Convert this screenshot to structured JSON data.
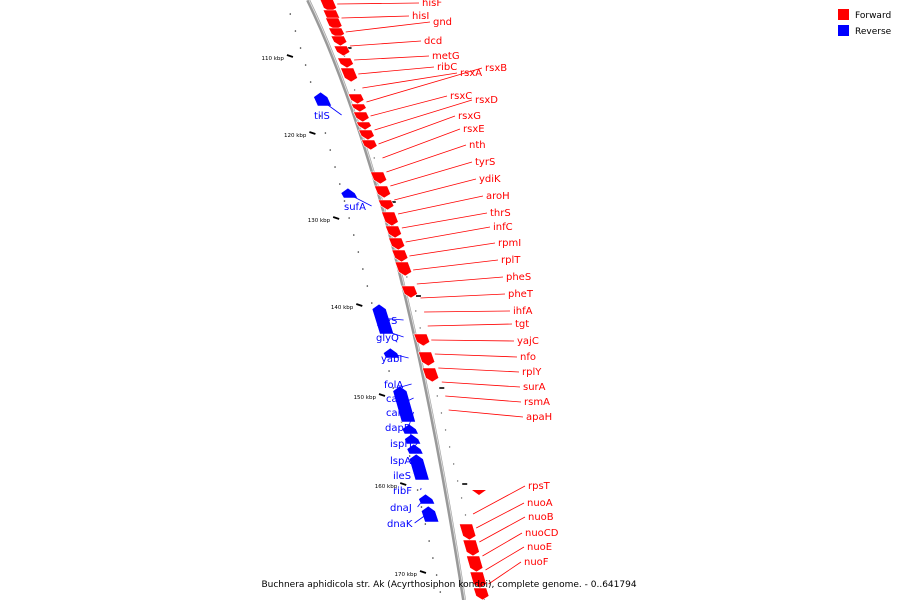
{
  "legend": [
    {
      "label": "Forward",
      "color": "#ff0000"
    },
    {
      "label": "Reverse",
      "color": "#0000ff"
    }
  ],
  "caption": "Buchnera aphidicola str. Ak (Acyrthosiphon kondoi), complete genome. - 0..641794",
  "colors": {
    "forward": "#ff0000",
    "reverse": "#0000ff",
    "backbone": "#999999"
  },
  "ticks": [
    "110 kbp",
    "120 kbp",
    "130 kbp",
    "140 kbp",
    "150 kbp",
    "160 kbp",
    "170 kbp"
  ],
  "genes_forward": [
    "hisF",
    "hisI",
    "gnd",
    "dcd",
    "metG",
    "ribC",
    "rsxA",
    "rsxB",
    "rsxC",
    "rsxD",
    "rsxG",
    "rsxE",
    "nth",
    "tyrS",
    "ydiK",
    "aroH",
    "thrS",
    "infC",
    "rpmI",
    "rplT",
    "pheS",
    "pheT",
    "ihfA",
    "tgt",
    "yajC",
    "nfo",
    "rplY",
    "surA",
    "rsmA",
    "apaH",
    "rpsT",
    "nuoA",
    "nuoB",
    "nuoCD",
    "nuoE",
    "nuoF"
  ],
  "genes_reverse": [
    "tilS",
    "sufA",
    "glyS",
    "glyQ",
    "yabI",
    "folA",
    "carB",
    "carA",
    "dapB",
    "ispH",
    "lspA",
    "ileS",
    "ribF",
    "dnaJ",
    "dnaK"
  ]
}
